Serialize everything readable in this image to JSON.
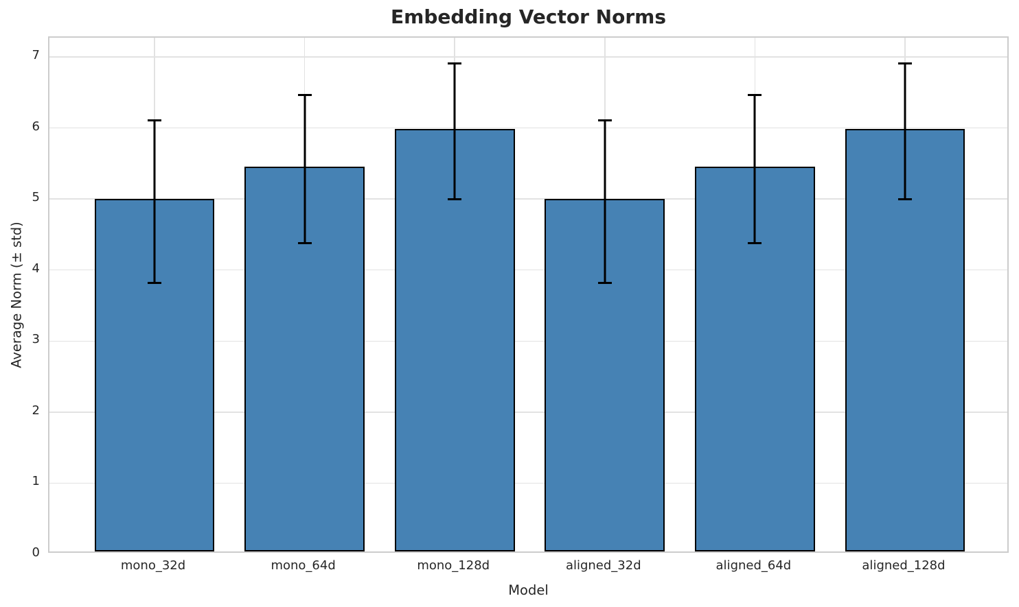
{
  "chart_data": {
    "type": "bar",
    "title": "Embedding Vector Norms",
    "xlabel": "Model",
    "ylabel": "Average Norm (± std)",
    "categories": [
      "mono_32d",
      "mono_64d",
      "mono_128d",
      "aligned_32d",
      "aligned_64d",
      "aligned_128d"
    ],
    "values": [
      4.96,
      5.42,
      5.95,
      4.96,
      5.42,
      5.95
    ],
    "errors": [
      1.16,
      1.06,
      0.97,
      1.16,
      1.06,
      0.97
    ],
    "yticks": [
      0,
      1,
      2,
      3,
      4,
      5,
      6,
      7
    ],
    "ylim": [
      0,
      7.27
    ],
    "xlim": [
      -0.7,
      5.7
    ],
    "bar_width": 0.8,
    "grid": "horizontal and vertical, light gray",
    "legend": "none",
    "colors": {
      "bar_fill": "#4682B4",
      "bar_edge": "#000000",
      "error_bar": "#000000",
      "grid": "#E2E2E2",
      "spine": "#CCCCCC",
      "text": "#262626"
    }
  }
}
